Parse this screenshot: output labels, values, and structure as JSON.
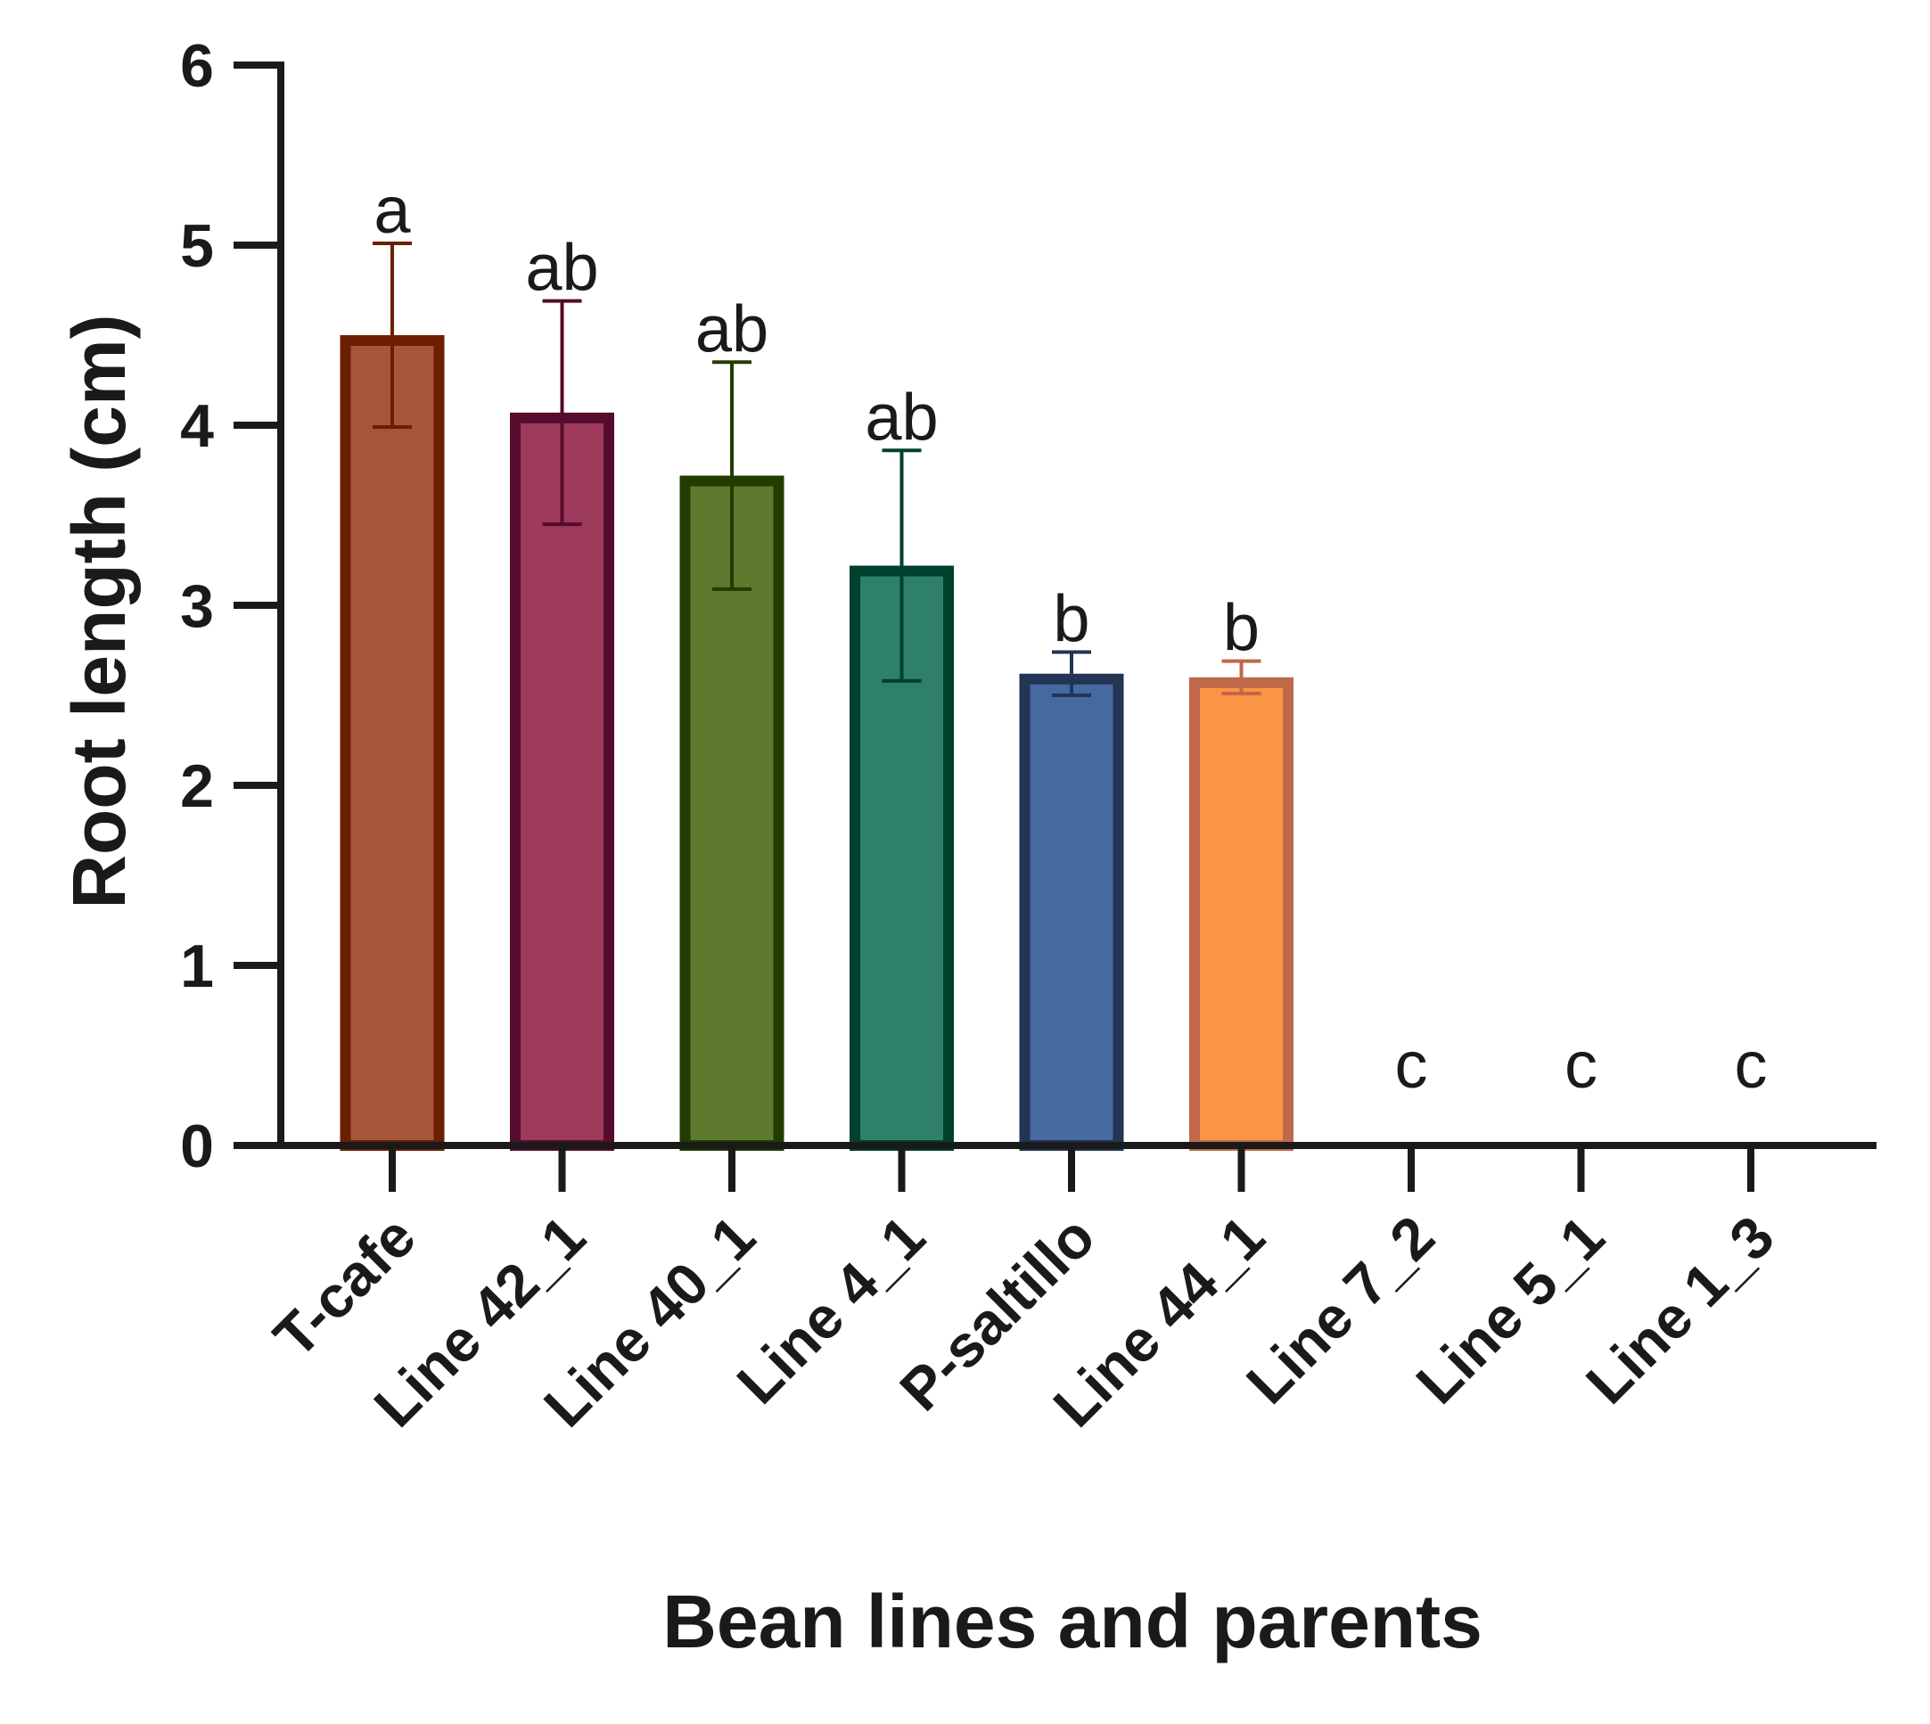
{
  "chart_data": {
    "type": "bar",
    "title": "",
    "xlabel": "Bean lines and parents",
    "ylabel": "Root length (cm)",
    "ylim": [
      0,
      6
    ],
    "yticks": [
      0,
      1,
      2,
      3,
      4,
      5,
      6
    ],
    "grid": false,
    "categories": [
      "T-cafe",
      "Line 42_1",
      "Line 40_1",
      "Line 4_1",
      "P-saltillo",
      "Line 44_1",
      "Line 7_2",
      "Line 5_1",
      "Line 1_3"
    ],
    "values": [
      4.5,
      4.07,
      3.72,
      3.22,
      2.62,
      2.6,
      0,
      0,
      0
    ],
    "error": [
      0.51,
      0.62,
      0.63,
      0.64,
      0.12,
      0.09,
      0,
      0,
      0
    ],
    "significance": [
      "a",
      "ab",
      "ab",
      "ab",
      "b",
      "b",
      "c",
      "c",
      "c"
    ],
    "fill_colors": [
      "#A6553A",
      "#9E3A5C",
      "#5F7A2E",
      "#2E8069",
      "#4669A0",
      "#FC9445",
      "#ffffff",
      "#ffffff",
      "#ffffff"
    ],
    "edge_colors": [
      "#6B1E00",
      "#560C2C",
      "#223C00",
      "#00402E",
      "#233454",
      "#C0694A",
      "#000000",
      "#000000",
      "#000000"
    ]
  }
}
